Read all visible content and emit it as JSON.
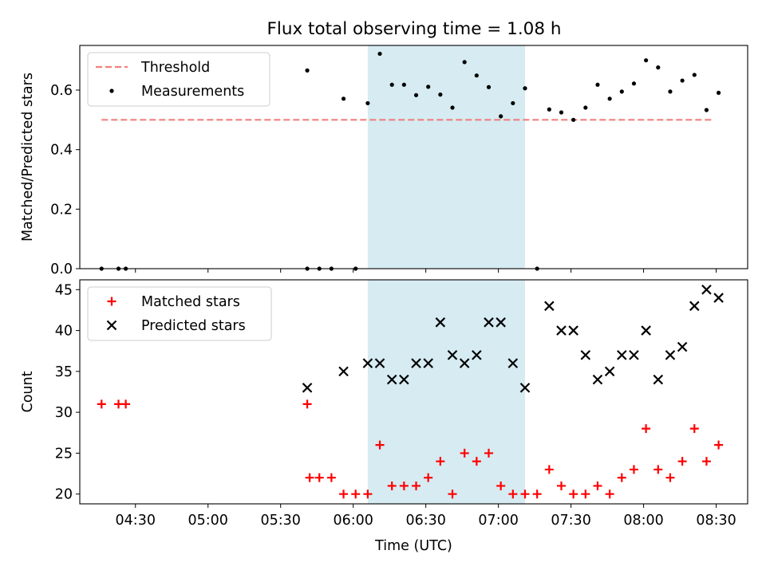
{
  "figure": {
    "title": "Flux total observing time = 1.08 h",
    "highlight_band": {
      "start": "06:06",
      "end": "07:11",
      "color": "#add8e6"
    }
  },
  "chart_data": [
    {
      "type": "scatter",
      "ylabel": "Matched/Predicted stars",
      "xlabel": "",
      "xlim": [
        "04:07",
        "08:43"
      ],
      "ylim": [
        0.0,
        0.75
      ],
      "yticks": [
        0.0,
        0.2,
        0.4,
        0.6
      ],
      "ytick_labels": [
        "0.0",
        "0.2",
        "0.4",
        "0.6"
      ],
      "legend": {
        "placement": "upper-left",
        "entries": [
          "Threshold",
          "Measurements"
        ]
      },
      "threshold": {
        "name": "Threshold",
        "value": 0.5,
        "x_start": "04:16",
        "x_end": "08:29",
        "color": "#f08080"
      },
      "series": [
        {
          "name": "Measurements",
          "marker": "dot",
          "color": "#000000",
          "points": [
            [
              "04:16",
              0.0
            ],
            [
              "04:23",
              0.0
            ],
            [
              "04:26",
              0.0
            ],
            [
              "05:41",
              0.0
            ],
            [
              "05:41",
              0.666
            ],
            [
              "05:46",
              0.0
            ],
            [
              "05:51",
              0.0
            ],
            [
              "05:56",
              0.571
            ],
            [
              "06:01",
              0.0
            ],
            [
              "06:06",
              0.556
            ],
            [
              "06:11",
              0.722
            ],
            [
              "06:16",
              0.618
            ],
            [
              "06:21",
              0.618
            ],
            [
              "06:26",
              0.583
            ],
            [
              "06:31",
              0.611
            ],
            [
              "06:36",
              0.585
            ],
            [
              "06:41",
              0.541
            ],
            [
              "06:46",
              0.694
            ],
            [
              "06:51",
              0.649
            ],
            [
              "06:56",
              0.61
            ],
            [
              "07:01",
              0.512
            ],
            [
              "07:06",
              0.556
            ],
            [
              "07:11",
              0.606
            ],
            [
              "07:16",
              0.0
            ],
            [
              "07:21",
              0.535
            ],
            [
              "07:26",
              0.525
            ],
            [
              "07:31",
              0.5
            ],
            [
              "07:36",
              0.541
            ],
            [
              "07:41",
              0.618
            ],
            [
              "07:46",
              0.571
            ],
            [
              "07:51",
              0.595
            ],
            [
              "07:56",
              0.622
            ],
            [
              "08:01",
              0.7
            ],
            [
              "08:06",
              0.676
            ],
            [
              "08:11",
              0.595
            ],
            [
              "08:16",
              0.632
            ],
            [
              "08:21",
              0.651
            ],
            [
              "08:26",
              0.533
            ],
            [
              "08:31",
              0.591
            ]
          ]
        }
      ]
    },
    {
      "type": "scatter",
      "ylabel": "Count",
      "xlabel": "Time (UTC)",
      "xlim": [
        "04:07",
        "08:43"
      ],
      "ylim": [
        18.8,
        46.2
      ],
      "yticks": [
        20,
        25,
        30,
        35,
        40,
        45
      ],
      "ytick_labels": [
        "20",
        "25",
        "30",
        "35",
        "40",
        "45"
      ],
      "xticks": [
        "04:30",
        "05:00",
        "05:30",
        "06:00",
        "06:30",
        "07:00",
        "07:30",
        "08:00",
        "08:30"
      ],
      "legend": {
        "placement": "upper-left",
        "entries": [
          "Matched stars",
          "Predicted stars"
        ]
      },
      "series": [
        {
          "name": "Matched stars",
          "marker": "plus",
          "color": "#ff0000",
          "points": [
            [
              "04:16",
              31
            ],
            [
              "04:23",
              31
            ],
            [
              "04:26",
              31
            ],
            [
              "05:41",
              31
            ],
            [
              "05:42",
              22
            ],
            [
              "05:46",
              22
            ],
            [
              "05:51",
              22
            ],
            [
              "05:56",
              20
            ],
            [
              "06:01",
              20
            ],
            [
              "06:06",
              20
            ],
            [
              "06:11",
              26
            ],
            [
              "06:16",
              21
            ],
            [
              "06:21",
              21
            ],
            [
              "06:26",
              21
            ],
            [
              "06:31",
              22
            ],
            [
              "06:36",
              24
            ],
            [
              "06:41",
              20
            ],
            [
              "06:46",
              25
            ],
            [
              "06:51",
              24
            ],
            [
              "06:56",
              25
            ],
            [
              "07:01",
              21
            ],
            [
              "07:06",
              20
            ],
            [
              "07:11",
              20
            ],
            [
              "07:16",
              20
            ],
            [
              "07:21",
              23
            ],
            [
              "07:26",
              21
            ],
            [
              "07:31",
              20
            ],
            [
              "07:36",
              20
            ],
            [
              "07:41",
              21
            ],
            [
              "07:46",
              20
            ],
            [
              "07:51",
              22
            ],
            [
              "07:56",
              23
            ],
            [
              "08:01",
              28
            ],
            [
              "08:06",
              23
            ],
            [
              "08:11",
              22
            ],
            [
              "08:16",
              24
            ],
            [
              "08:21",
              28
            ],
            [
              "08:26",
              24
            ],
            [
              "08:31",
              26
            ]
          ]
        },
        {
          "name": "Predicted stars",
          "marker": "x",
          "color": "#000000",
          "points": [
            [
              "05:41",
              33
            ],
            [
              "05:56",
              35
            ],
            [
              "06:06",
              36
            ],
            [
              "06:11",
              36
            ],
            [
              "06:16",
              34
            ],
            [
              "06:21",
              34
            ],
            [
              "06:26",
              36
            ],
            [
              "06:31",
              36
            ],
            [
              "06:36",
              41
            ],
            [
              "06:41",
              37
            ],
            [
              "06:46",
              36
            ],
            [
              "06:51",
              37
            ],
            [
              "06:56",
              41
            ],
            [
              "07:01",
              41
            ],
            [
              "07:06",
              36
            ],
            [
              "07:11",
              33
            ],
            [
              "07:21",
              43
            ],
            [
              "07:26",
              40
            ],
            [
              "07:31",
              40
            ],
            [
              "07:36",
              37
            ],
            [
              "07:41",
              34
            ],
            [
              "07:46",
              35
            ],
            [
              "07:51",
              37
            ],
            [
              "07:56",
              37
            ],
            [
              "08:01",
              40
            ],
            [
              "08:06",
              34
            ],
            [
              "08:11",
              37
            ],
            [
              "08:16",
              38
            ],
            [
              "08:21",
              43
            ],
            [
              "08:26",
              45
            ],
            [
              "08:31",
              44
            ]
          ]
        }
      ]
    }
  ]
}
